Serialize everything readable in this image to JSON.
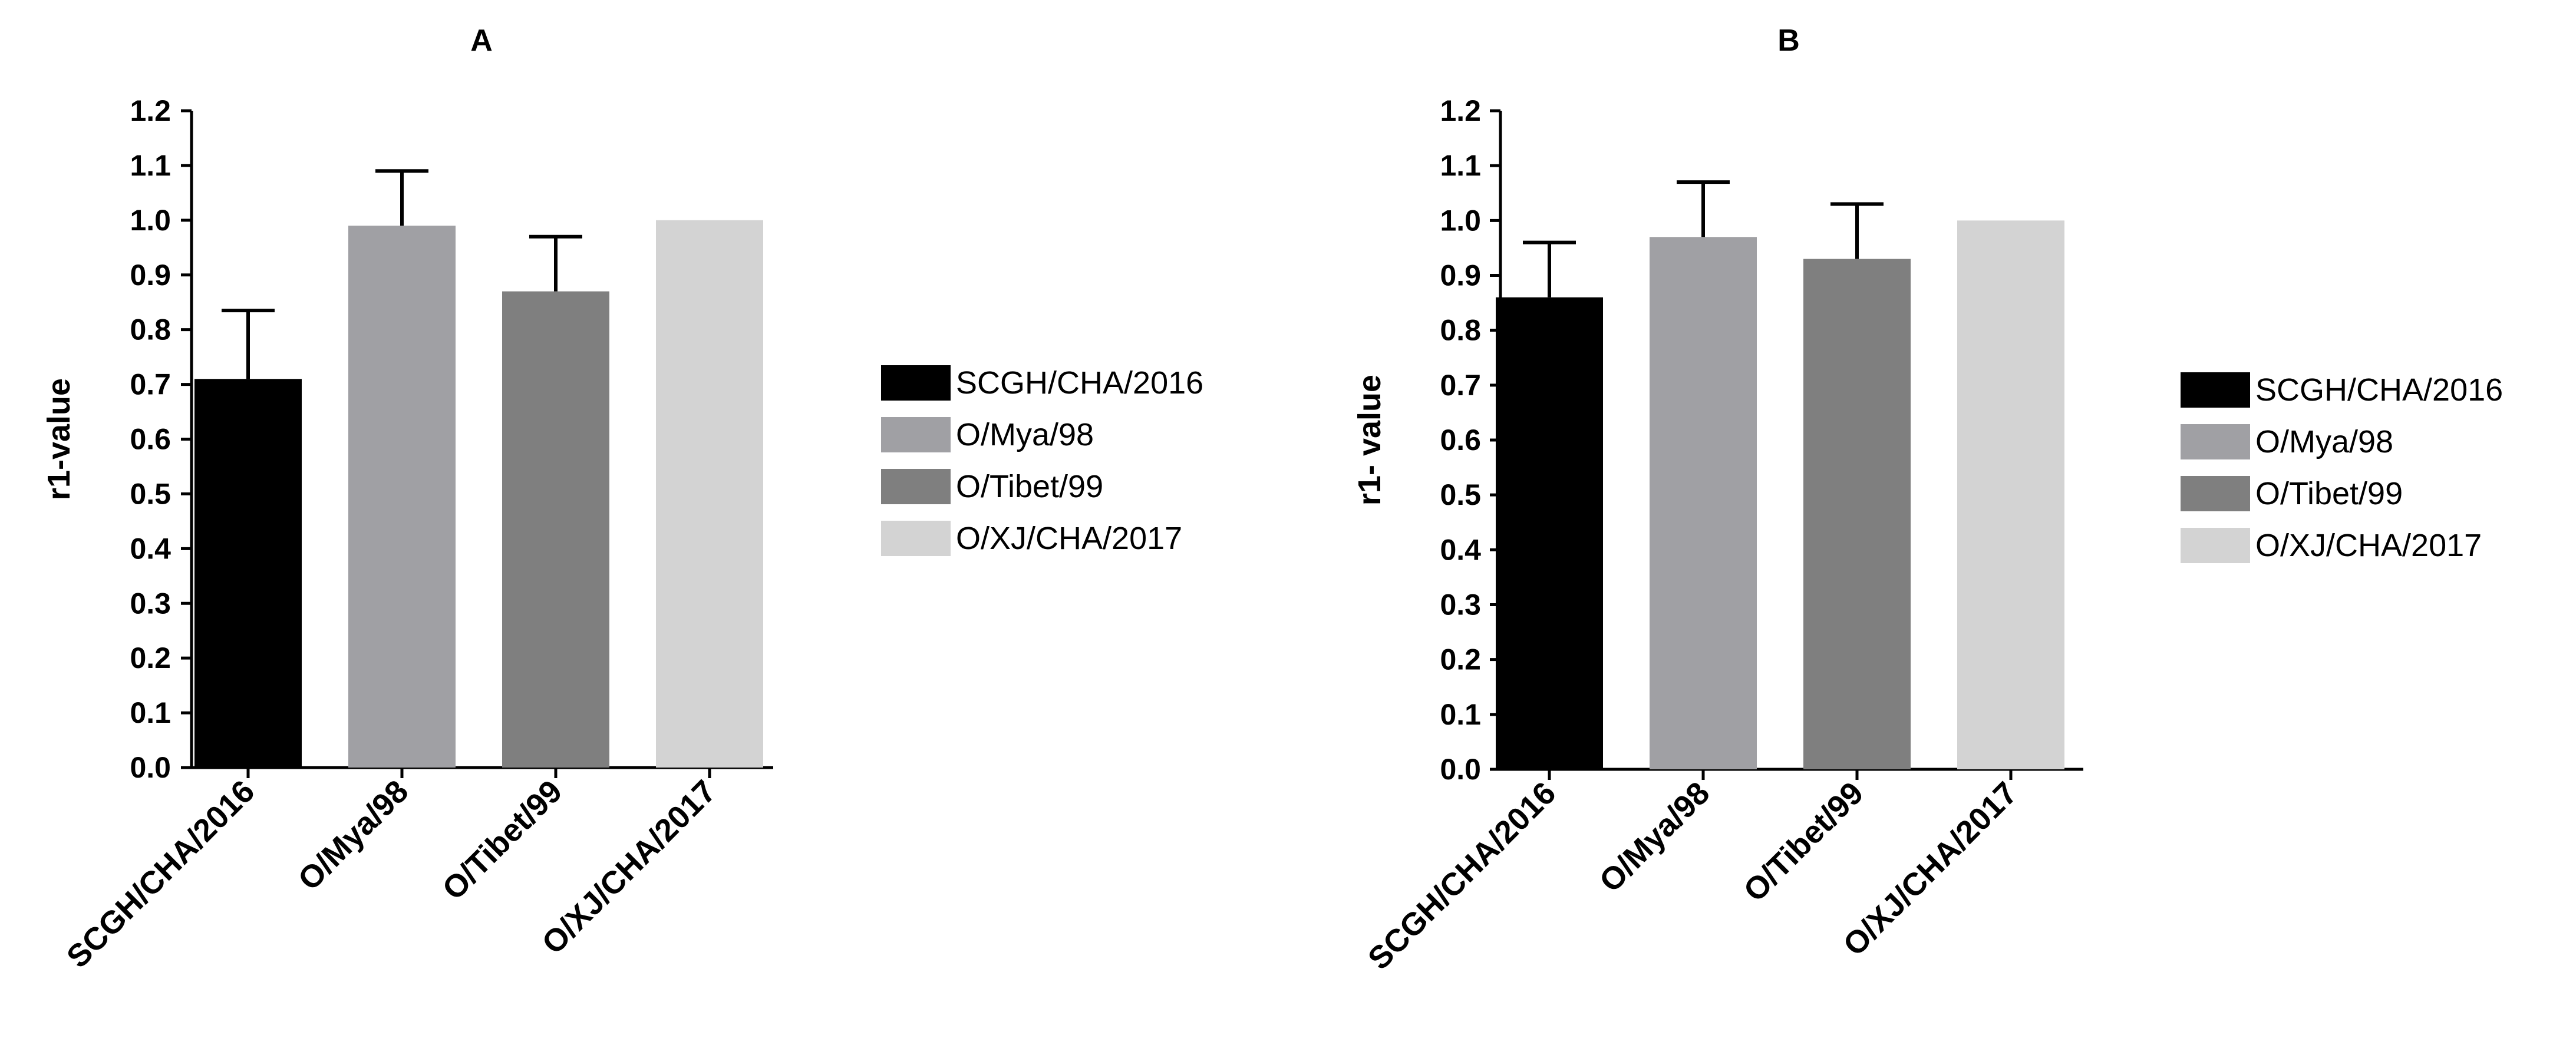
{
  "colors": {
    "SCGH/CHA/2016": "#000000",
    "O/Mya/98": "#a0a0a4",
    "O/Tibet/99": "#7f7f7f",
    "O/XJ/CHA/2017": "#d3d3d3"
  },
  "chart_data": [
    {
      "type": "bar",
      "title": "A",
      "xlabel": "",
      "ylabel": "r1-value",
      "ylim": [
        0.0,
        1.2
      ],
      "yticks": [
        "0.0",
        "0.1",
        "0.2",
        "0.3",
        "0.4",
        "0.5",
        "0.6",
        "0.7",
        "0.8",
        "0.9",
        "1.0",
        "1.1",
        "1.2"
      ],
      "categories": [
        "SCGH/CHA/2016",
        "O/Mya/98",
        "O/Tibet/99",
        "O/XJ/CHA/2017"
      ],
      "values": [
        0.71,
        0.99,
        0.87,
        1.0
      ],
      "errors": [
        0.125,
        0.1,
        0.1,
        0.0
      ],
      "legend": [
        "SCGH/CHA/2016",
        "O/Mya/98",
        "O/Tibet/99",
        "O/XJ/CHA/2017"
      ],
      "legend_position": "right",
      "grid": false
    },
    {
      "type": "bar",
      "title": "B",
      "xlabel": "",
      "ylabel": "r1- value",
      "ylim": [
        0.0,
        1.2
      ],
      "yticks": [
        "0.0",
        "0.1",
        "0.2",
        "0.3",
        "0.4",
        "0.5",
        "0.6",
        "0.7",
        "0.8",
        "0.9",
        "1.0",
        "1.1",
        "1.2"
      ],
      "categories": [
        "SCGH/CHA/2016",
        "O/Mya/98",
        "O/Tibet/99",
        "O/XJ/CHA/2017"
      ],
      "values": [
        0.86,
        0.97,
        0.93,
        1.0
      ],
      "errors": [
        0.1,
        0.1,
        0.1,
        0.0
      ],
      "legend": [
        "SCGH/CHA/2016",
        "O/Mya/98",
        "O/Tibet/99",
        "O/XJ/CHA/2017"
      ],
      "legend_position": "right",
      "grid": false
    }
  ]
}
